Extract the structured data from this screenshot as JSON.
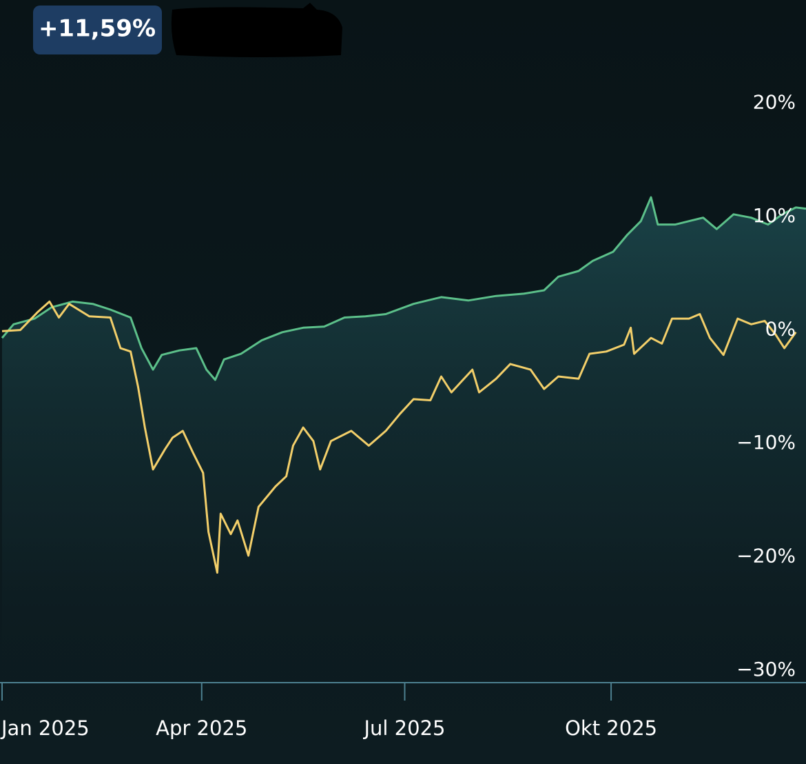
{
  "chart_data": {
    "type": "line",
    "badge": "+11,59%",
    "xlim": [
      0,
      11.88
    ],
    "ylim": [
      -31.1,
      29.1
    ],
    "xticks": [
      {
        "value": 0,
        "label": "Jan 2025"
      },
      {
        "value": 2.95,
        "label": "Apr 2025"
      },
      {
        "value": 5.95,
        "label": "Jul 2025"
      },
      {
        "value": 9.0,
        "label": "Okt 2025"
      }
    ],
    "yticks": [
      {
        "value": 20,
        "label": "20%"
      },
      {
        "value": 10,
        "label": "10%"
      },
      {
        "value": 0,
        "label": "0%"
      },
      {
        "value": -10,
        "label": "−10%"
      },
      {
        "value": -20,
        "label": "−20%"
      },
      {
        "value": -30,
        "label": "−30%"
      }
    ],
    "series": [
      {
        "color": "#5cc08a",
        "area": true,
        "x": [
          0,
          0.17,
          0.48,
          0.73,
          1.04,
          1.34,
          1.6,
          1.9,
          2.06,
          2.23,
          2.36,
          2.62,
          2.87,
          3.02,
          3.15,
          3.28,
          3.53,
          3.84,
          4.14,
          4.45,
          4.76,
          5.06,
          5.37,
          5.67,
          6.08,
          6.49,
          6.89,
          7.3,
          7.71,
          8.01,
          8.22,
          8.52,
          8.73,
          9.03,
          9.24,
          9.44,
          9.59,
          9.69,
          9.95,
          10.15,
          10.36,
          10.56,
          10.81,
          11.07,
          11.32,
          11.53,
          11.73,
          11.88
        ],
        "values": [
          -0.7,
          0.5,
          1.0,
          2.0,
          2.5,
          2.3,
          1.8,
          1.1,
          -1.6,
          -3.5,
          -2.2,
          -1.8,
          -1.6,
          -3.5,
          -4.4,
          -2.6,
          -2.1,
          -0.9,
          -0.2,
          0.2,
          0.3,
          1.1,
          1.2,
          1.4,
          2.3,
          2.9,
          2.6,
          3.0,
          3.2,
          3.5,
          4.7,
          5.2,
          6.1,
          6.9,
          8.4,
          9.6,
          11.7,
          9.3,
          9.3,
          9.6,
          9.9,
          8.9,
          10.2,
          9.9,
          9.3,
          10.2,
          10.8,
          10.7
        ]
      },
      {
        "color": "#f3cf6a",
        "area": false,
        "x": [
          0,
          0.27,
          0.53,
          0.7,
          0.84,
          0.99,
          1.29,
          1.6,
          1.75,
          1.9,
          2.01,
          2.11,
          2.23,
          2.41,
          2.52,
          2.67,
          2.82,
          2.97,
          3.05,
          3.18,
          3.23,
          3.38,
          3.48,
          3.64,
          3.79,
          4.04,
          4.2,
          4.3,
          4.45,
          4.6,
          4.7,
          4.86,
          5.16,
          5.42,
          5.67,
          5.88,
          6.08,
          6.33,
          6.49,
          6.64,
          6.95,
          7.05,
          7.3,
          7.51,
          7.81,
          8.01,
          8.22,
          8.52,
          8.68,
          8.93,
          9.19,
          9.29,
          9.34,
          9.59,
          9.75,
          9.9,
          10.15,
          10.31,
          10.46,
          10.66,
          10.87,
          11.07,
          11.27,
          11.43,
          11.56,
          11.73
        ],
        "values": [
          -0.1,
          0,
          1.6,
          2.5,
          1.1,
          2.3,
          1.2,
          1.1,
          -1.6,
          -1.9,
          -5.0,
          -8.6,
          -12.3,
          -10.5,
          -9.5,
          -8.9,
          -10.8,
          -12.6,
          -17.8,
          -21.4,
          -16.2,
          -18.0,
          -16.8,
          -19.9,
          -15.6,
          -13.8,
          -12.9,
          -10.2,
          -8.6,
          -9.8,
          -12.3,
          -9.8,
          -8.9,
          -10.2,
          -8.9,
          -7.4,
          -6.1,
          -6.2,
          -4.1,
          -5.5,
          -3.5,
          -5.5,
          -4.3,
          -3.0,
          -3.5,
          -5.2,
          -4.1,
          -4.3,
          -2.1,
          -1.9,
          -1.3,
          0.2,
          -2.1,
          -0.7,
          -1.2,
          1.0,
          1.0,
          1.4,
          -0.7,
          -2.2,
          1.0,
          0.5,
          0.8,
          -0.4,
          -1.6,
          -0.2
        ]
      }
    ]
  }
}
